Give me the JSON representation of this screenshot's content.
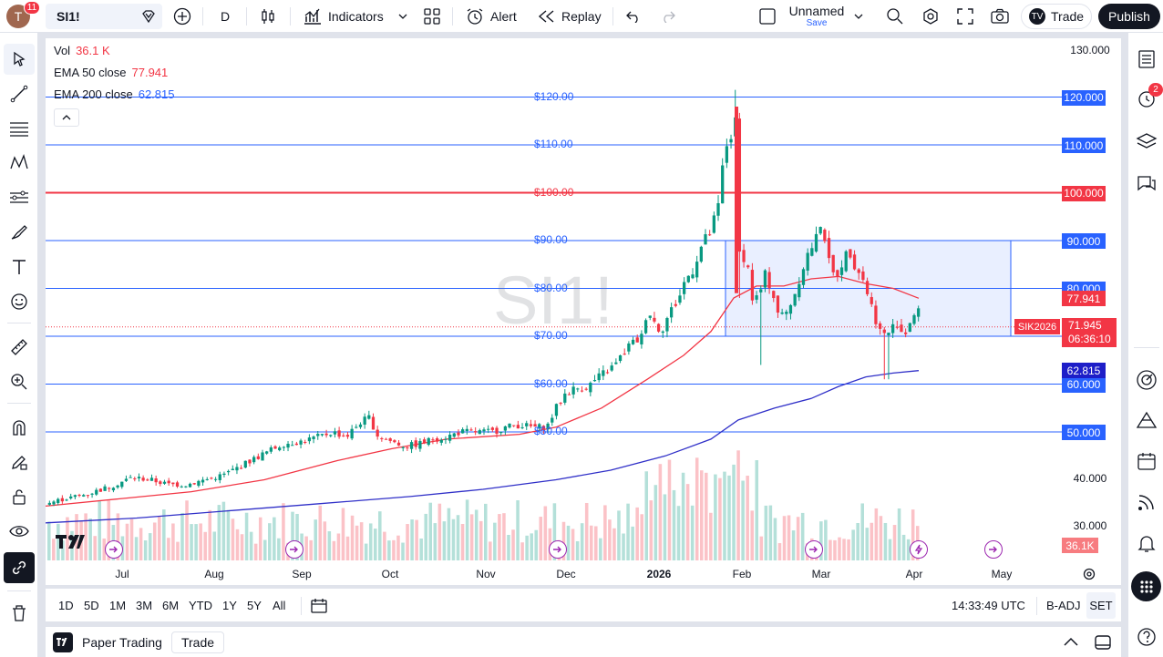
{
  "topbar": {
    "avatar_letter": "T",
    "notif_count": "11",
    "symbol": "SI1!",
    "interval": "D",
    "indicators_label": "Indicators",
    "alert_label": "Alert",
    "replay_label": "Replay",
    "layout_name": "Unnamed",
    "save_label": "Save",
    "trade_label": "Trade",
    "publish_label": "Publish"
  },
  "legend": {
    "vol_label": "Vol",
    "vol_value": "36.1 K",
    "ema50_label": "EMA 50 close",
    "ema50_value": "77.941",
    "ema200_label": "EMA 200 close",
    "ema200_value": "62.815"
  },
  "watermark": "SI1!",
  "hlines": [
    {
      "price": 120,
      "label": "$120.00",
      "axis": "120.000",
      "color": "#2962ff"
    },
    {
      "price": 110,
      "label": "$110.00",
      "axis": "110.000",
      "color": "#2962ff"
    },
    {
      "price": 100,
      "label": "$100.00",
      "axis": "100.000",
      "color": "#f23645"
    },
    {
      "price": 90,
      "label": "$90.00",
      "axis": "90.000",
      "color": "#2962ff"
    },
    {
      "price": 80,
      "label": "$80.00",
      "axis": "80.000",
      "color": "#2962ff"
    },
    {
      "price": 70,
      "label": "$70.00",
      "axis": "70.000",
      "color": "#2962ff"
    },
    {
      "price": 60,
      "label": "$60.00",
      "axis": "60.000",
      "color": "#2962ff"
    },
    {
      "price": 50,
      "label": "$50.00",
      "axis": "50.000",
      "color": "#2962ff"
    }
  ],
  "price_axis_ticks": [
    "130.000",
    "40.000",
    "30.000"
  ],
  "price_labels": {
    "ema50": "77.941",
    "last": "71.945",
    "countdown": "06:36:10",
    "contract": "SIK2026",
    "ema200": "62.815",
    "volume": "36.1K"
  },
  "time_axis": [
    "Jul",
    "Aug",
    "Sep",
    "Oct",
    "Nov",
    "Dec",
    "2026",
    "Feb",
    "Mar",
    "Apr",
    "May"
  ],
  "colors": {
    "up": "#089981",
    "down": "#f23645",
    "ema50": "#f23645",
    "ema200": "#3030c8",
    "accent": "#2962ff"
  },
  "bottombar": {
    "ranges": [
      "1D",
      "5D",
      "1M",
      "3M",
      "6M",
      "YTD",
      "1Y",
      "5Y",
      "All"
    ],
    "clock": "14:33:49 UTC",
    "badj": "B-ADJ",
    "set": "SET"
  },
  "footer": {
    "paper_trading": "Paper Trading",
    "trade": "Trade"
  },
  "rightbar": {
    "alert_count": "2"
  },
  "chart_data": {
    "type": "candlestick",
    "symbol": "SI1!",
    "price_range": [
      25,
      130
    ],
    "series": [
      {
        "name": "EMA 50 close",
        "last": 77.941
      },
      {
        "name": "EMA 200 close",
        "last": 62.815
      }
    ],
    "path": [
      [
        0,
        35
      ],
      [
        20,
        36
      ],
      [
        45,
        37
      ],
      [
        70,
        38.5
      ],
      [
        95,
        40.5
      ],
      [
        115,
        40
      ],
      [
        135,
        39
      ],
      [
        155,
        39
      ],
      [
        175,
        40
      ],
      [
        195,
        41
      ],
      [
        215,
        43
      ],
      [
        240,
        45.5
      ],
      [
        260,
        47.5
      ],
      [
        280,
        48
      ],
      [
        300,
        49
      ],
      [
        315,
        50
      ],
      [
        330,
        49
      ],
      [
        345,
        52
      ],
      [
        355,
        53
      ],
      [
        365,
        49
      ],
      [
        380,
        48
      ],
      [
        395,
        47
      ],
      [
        410,
        47.5
      ],
      [
        425,
        48.5
      ],
      [
        440,
        49
      ],
      [
        455,
        50
      ],
      [
        470,
        50
      ],
      [
        490,
        50
      ],
      [
        505,
        51
      ],
      [
        520,
        51.5
      ],
      [
        535,
        51
      ],
      [
        550,
        51
      ],
      [
        560,
        55
      ],
      [
        570,
        58
      ],
      [
        580,
        59
      ],
      [
        595,
        59.5
      ],
      [
        610,
        62
      ],
      [
        625,
        64
      ],
      [
        640,
        68
      ],
      [
        655,
        70
      ],
      [
        660,
        76
      ],
      [
        668,
        73
      ],
      [
        675,
        71
      ],
      [
        685,
        75
      ],
      [
        695,
        78
      ],
      [
        700,
        81
      ],
      [
        710,
        84
      ],
      [
        720,
        89
      ],
      [
        730,
        92
      ],
      [
        738,
        97
      ],
      [
        745,
        109
      ],
      [
        752,
        112
      ],
      [
        758,
        115
      ],
      [
        760,
        95
      ],
      [
        762,
        84
      ],
      [
        768,
        88
      ],
      [
        775,
        78
      ],
      [
        782,
        78
      ],
      [
        790,
        83
      ],
      [
        798,
        79
      ],
      [
        805,
        74
      ],
      [
        813,
        75
      ],
      [
        822,
        79
      ],
      [
        830,
        84
      ],
      [
        838,
        88
      ],
      [
        845,
        90
      ],
      [
        852,
        95
      ],
      [
        858,
        86
      ],
      [
        866,
        82
      ],
      [
        875,
        86
      ],
      [
        882,
        88
      ],
      [
        888,
        85
      ],
      [
        895,
        83
      ],
      [
        902,
        79
      ],
      [
        910,
        74
      ],
      [
        918,
        70
      ],
      [
        926,
        71
      ],
      [
        934,
        73
      ],
      [
        942,
        70
      ],
      [
        950,
        74
      ],
      [
        958,
        75
      ],
      [
        962,
        72
      ]
    ],
    "ema50": [
      [
        0,
        34.5
      ],
      [
        80,
        36
      ],
      [
        160,
        37.5
      ],
      [
        240,
        40
      ],
      [
        320,
        44
      ],
      [
        380,
        46.5
      ],
      [
        440,
        48.5
      ],
      [
        520,
        49.5
      ],
      [
        560,
        51
      ],
      [
        610,
        55
      ],
      [
        660,
        61
      ],
      [
        700,
        66
      ],
      [
        730,
        71
      ],
      [
        755,
        78
      ],
      [
        780,
        80.5
      ],
      [
        810,
        80.5
      ],
      [
        840,
        82
      ],
      [
        870,
        82.5
      ],
      [
        900,
        81
      ],
      [
        930,
        80
      ],
      [
        958,
        77.941
      ]
    ],
    "ema200": [
      [
        0,
        31
      ],
      [
        100,
        32
      ],
      [
        200,
        33.5
      ],
      [
        300,
        35
      ],
      [
        400,
        36.5
      ],
      [
        480,
        38
      ],
      [
        560,
        40
      ],
      [
        620,
        42
      ],
      [
        680,
        45
      ],
      [
        730,
        48.5
      ],
      [
        760,
        52.5
      ],
      [
        800,
        55
      ],
      [
        840,
        57
      ],
      [
        870,
        59.5
      ],
      [
        900,
        61.5
      ],
      [
        930,
        62.3
      ],
      [
        958,
        62.815
      ]
    ],
    "range_box": {
      "from_price": 90,
      "to_price": 70
    }
  }
}
